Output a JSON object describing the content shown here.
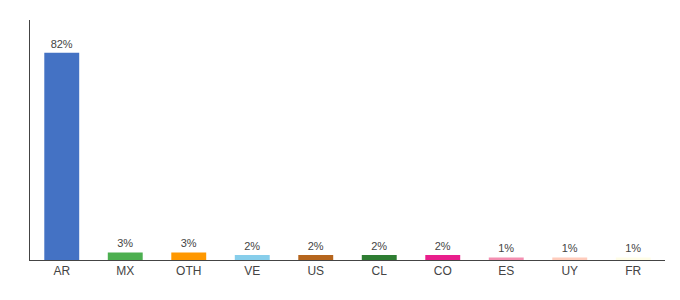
{
  "chart_data": {
    "type": "bar",
    "categories": [
      "AR",
      "MX",
      "OTH",
      "VE",
      "US",
      "CL",
      "CO",
      "ES",
      "UY",
      "FR"
    ],
    "values": [
      82,
      3,
      3,
      2,
      2,
      2,
      2,
      1,
      1,
      1
    ],
    "value_labels": [
      "82%",
      "3%",
      "3%",
      "2%",
      "2%",
      "2%",
      "2%",
      "1%",
      "1%",
      "1%"
    ],
    "colors": [
      "#4472c4",
      "#4caf50",
      "#ff9800",
      "#87ceeb",
      "#b5651d",
      "#2e7d32",
      "#e91e8c",
      "#f48fb1",
      "#ffccbc",
      "#fffde7"
    ],
    "ylim": [
      0,
      95
    ],
    "data_labels": true,
    "tick_labels": "x",
    "grid": false
  }
}
